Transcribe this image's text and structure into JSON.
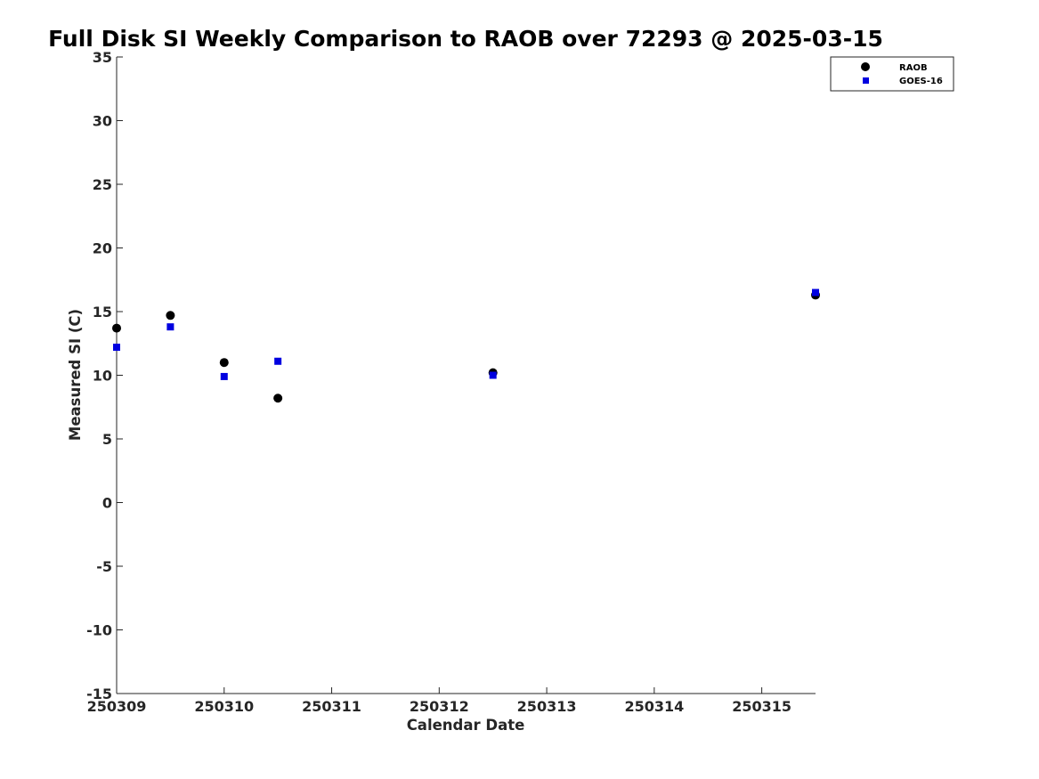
{
  "chart_data": {
    "type": "scatter",
    "title": "Full Disk SI Weekly Comparison to RAOB over 72293 @ 2025-03-15",
    "xlabel": "Calendar Date",
    "ylabel": "Measured SI (C)",
    "xlim": [
      250309,
      250315.5
    ],
    "ylim": [
      -15,
      35
    ],
    "xticks": [
      250309,
      250310,
      250311,
      250312,
      250313,
      250314,
      250315
    ],
    "xtick_labels": [
      "250309",
      "250310",
      "250311",
      "250312",
      "250313",
      "250314",
      "250315"
    ],
    "yticks": [
      -15,
      -10,
      -5,
      0,
      5,
      10,
      15,
      20,
      25,
      30,
      35
    ],
    "grid": false,
    "legend_position": "top-right",
    "series": [
      {
        "name": "RAOB",
        "marker": "circle",
        "color": "#000000",
        "points": [
          {
            "x": 250309,
            "y": 13.7
          },
          {
            "x": 250309.5,
            "y": 14.7
          },
          {
            "x": 250310,
            "y": 11.0
          },
          {
            "x": 250310.5,
            "y": 8.2
          },
          {
            "x": 250312.5,
            "y": 10.2
          },
          {
            "x": 250315.5,
            "y": 16.3
          }
        ]
      },
      {
        "name": "GOES-16",
        "marker": "square",
        "color": "#0000e0",
        "points": [
          {
            "x": 250309,
            "y": 12.2
          },
          {
            "x": 250309.5,
            "y": 13.8
          },
          {
            "x": 250310,
            "y": 9.9
          },
          {
            "x": 250310.5,
            "y": 11.1
          },
          {
            "x": 250312.5,
            "y": 10.0
          },
          {
            "x": 250315.5,
            "y": 16.5
          }
        ]
      }
    ]
  }
}
